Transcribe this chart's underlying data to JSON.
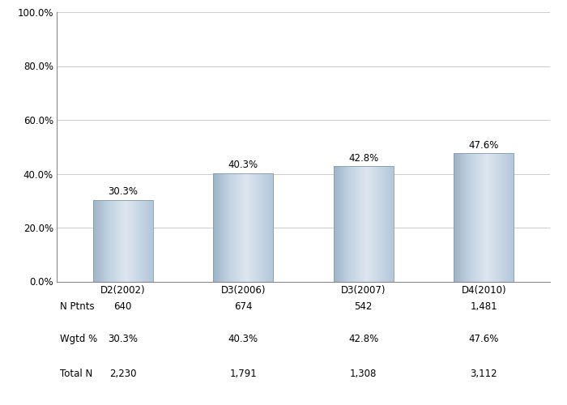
{
  "categories": [
    "D2(2002)",
    "D3(2006)",
    "D3(2007)",
    "D4(2010)"
  ],
  "values": [
    30.3,
    40.3,
    42.8,
    47.6
  ],
  "labels": [
    "30.3%",
    "40.3%",
    "42.8%",
    "47.6%"
  ],
  "n_ptnts": [
    "640",
    "674",
    "542",
    "1,481"
  ],
  "wgtd_pct": [
    "30.3%",
    "40.3%",
    "42.8%",
    "47.6%"
  ],
  "total_n": [
    "2,230",
    "1,791",
    "1,308",
    "3,112"
  ],
  "ylim": [
    0,
    100
  ],
  "yticks": [
    0,
    20,
    40,
    60,
    80,
    100
  ],
  "ytick_labels": [
    "0.0%",
    "20.0%",
    "40.0%",
    "60.0%",
    "80.0%",
    "100.0%"
  ],
  "background_color": "#ffffff",
  "grid_color": "#cccccc",
  "table_row_labels": [
    "N Ptnts",
    "Wgtd %",
    "Total N"
  ],
  "bar_width": 0.5,
  "label_fontsize": 8.5,
  "tick_fontsize": 8.5,
  "table_fontsize": 8.5,
  "spine_color": "#888888"
}
